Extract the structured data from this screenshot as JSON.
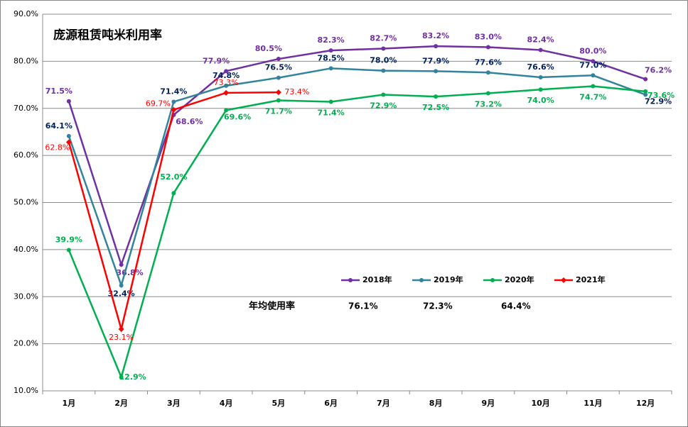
{
  "chart_data": {
    "type": "line",
    "title": "庞源租赁吨米利用率",
    "categories": [
      "1月",
      "2月",
      "3月",
      "4月",
      "5月",
      "6月",
      "7月",
      "8月",
      "9月",
      "10月",
      "11月",
      "12月"
    ],
    "series": [
      {
        "name": "2018年",
        "color": "#7030a0",
        "label_color": "#7030a0",
        "values": [
          71.5,
          36.8,
          68.6,
          77.9,
          80.5,
          82.3,
          82.7,
          83.2,
          83.0,
          82.4,
          80.0,
          76.2
        ],
        "value_labels": [
          "71.5%",
          "36.8%",
          "68.6%",
          "77.9%",
          "80.5%",
          "82.3%",
          "82.7%",
          "83.2%",
          "83.0%",
          "82.4%",
          "80.0%",
          "76.2%"
        ]
      },
      {
        "name": "2019年",
        "color": "#31849b",
        "label_color": "#002060",
        "values": [
          64.1,
          32.4,
          71.4,
          74.8,
          76.5,
          78.5,
          78.0,
          77.9,
          77.6,
          76.6,
          77.0,
          72.9
        ],
        "value_labels": [
          "64.1%",
          "32.4%",
          "71.4%",
          "74.8%",
          "76.5%",
          "78.5%",
          "78.0%",
          "77.9%",
          "77.6%",
          "76.6%",
          "77.0%",
          "72.9%"
        ]
      },
      {
        "name": "2020年",
        "color": "#00b050",
        "label_color": "#00b050",
        "values": [
          39.9,
          12.9,
          52.0,
          69.6,
          71.7,
          71.4,
          72.9,
          72.5,
          73.2,
          74.0,
          74.7,
          73.6
        ],
        "value_labels": [
          "39.9%",
          "12.9%",
          "52.0%",
          "69.6%",
          "71.7%",
          "71.4%",
          "72.9%",
          "72.5%",
          "73.2%",
          "74.0%",
          "74.7%",
          "73.6%"
        ]
      },
      {
        "name": "2021年",
        "color": "#ff0000",
        "label_color": "#ff0000",
        "values": [
          62.8,
          23.1,
          69.7,
          73.3,
          73.4,
          null,
          null,
          null,
          null,
          null,
          null,
          null
        ],
        "value_labels": [
          "62.8%",
          "23.1%",
          "69.7%",
          "73.3%",
          "73.4%",
          null,
          null,
          null,
          null,
          null,
          null,
          null
        ]
      }
    ],
    "ylim": [
      10,
      90
    ],
    "yticks": [
      {
        "value": 10,
        "label": "10.0%"
      },
      {
        "value": 20,
        "label": "20.0%"
      },
      {
        "value": 30,
        "label": "30.0%"
      },
      {
        "value": 40,
        "label": "40.0%"
      },
      {
        "value": 50,
        "label": "50.0%"
      },
      {
        "value": 60,
        "label": "60.0%"
      },
      {
        "value": 70,
        "label": "70.0%"
      },
      {
        "value": 80,
        "label": "80.0%"
      },
      {
        "value": 90,
        "label": "90.0%"
      }
    ],
    "grid": true,
    "annotations": {
      "label": "年均使用率",
      "values": [
        "76.1%",
        "72.3%",
        "64.4%"
      ]
    }
  }
}
